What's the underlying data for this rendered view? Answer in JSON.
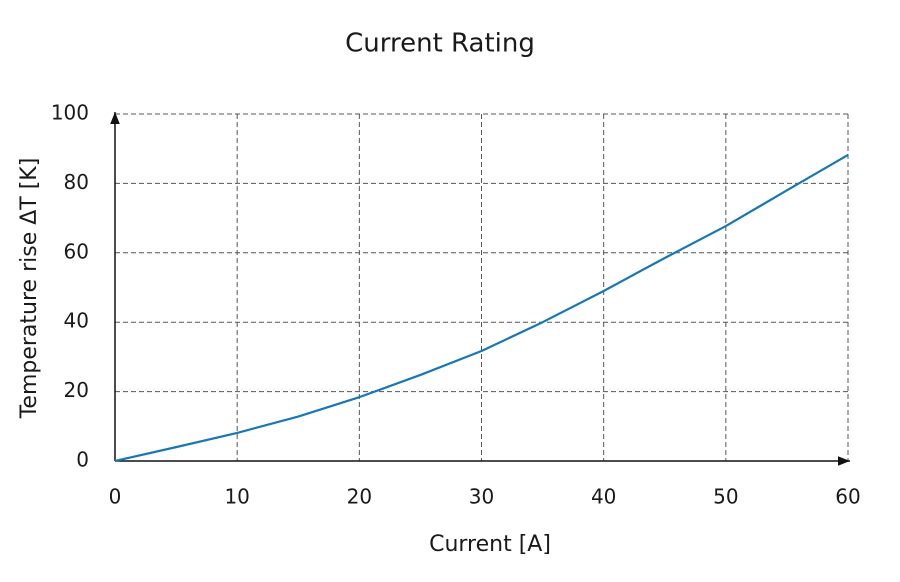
{
  "chart_data": {
    "type": "line",
    "title": "Current Rating",
    "x_label": "Current [A]",
    "y_label": "Temperature rise ΔT [K]",
    "x": [
      0,
      5,
      10,
      15,
      20,
      25,
      30,
      35,
      40,
      45,
      50,
      55,
      60
    ],
    "series": [
      {
        "name": "Temperature rise",
        "color": "#1878b4",
        "values": [
          0,
          4,
          8.1,
          12.8,
          18.4,
          24.8,
          31.7,
          40,
          49,
          58.5,
          67.7,
          78,
          88.2
        ]
      }
    ],
    "xlim": [
      0,
      60
    ],
    "xticks": [
      0,
      10,
      20,
      30,
      40,
      50,
      60
    ],
    "ylim": [
      0,
      100
    ],
    "yticks": [
      0,
      20,
      40,
      60,
      80,
      100
    ],
    "grid": true
  }
}
